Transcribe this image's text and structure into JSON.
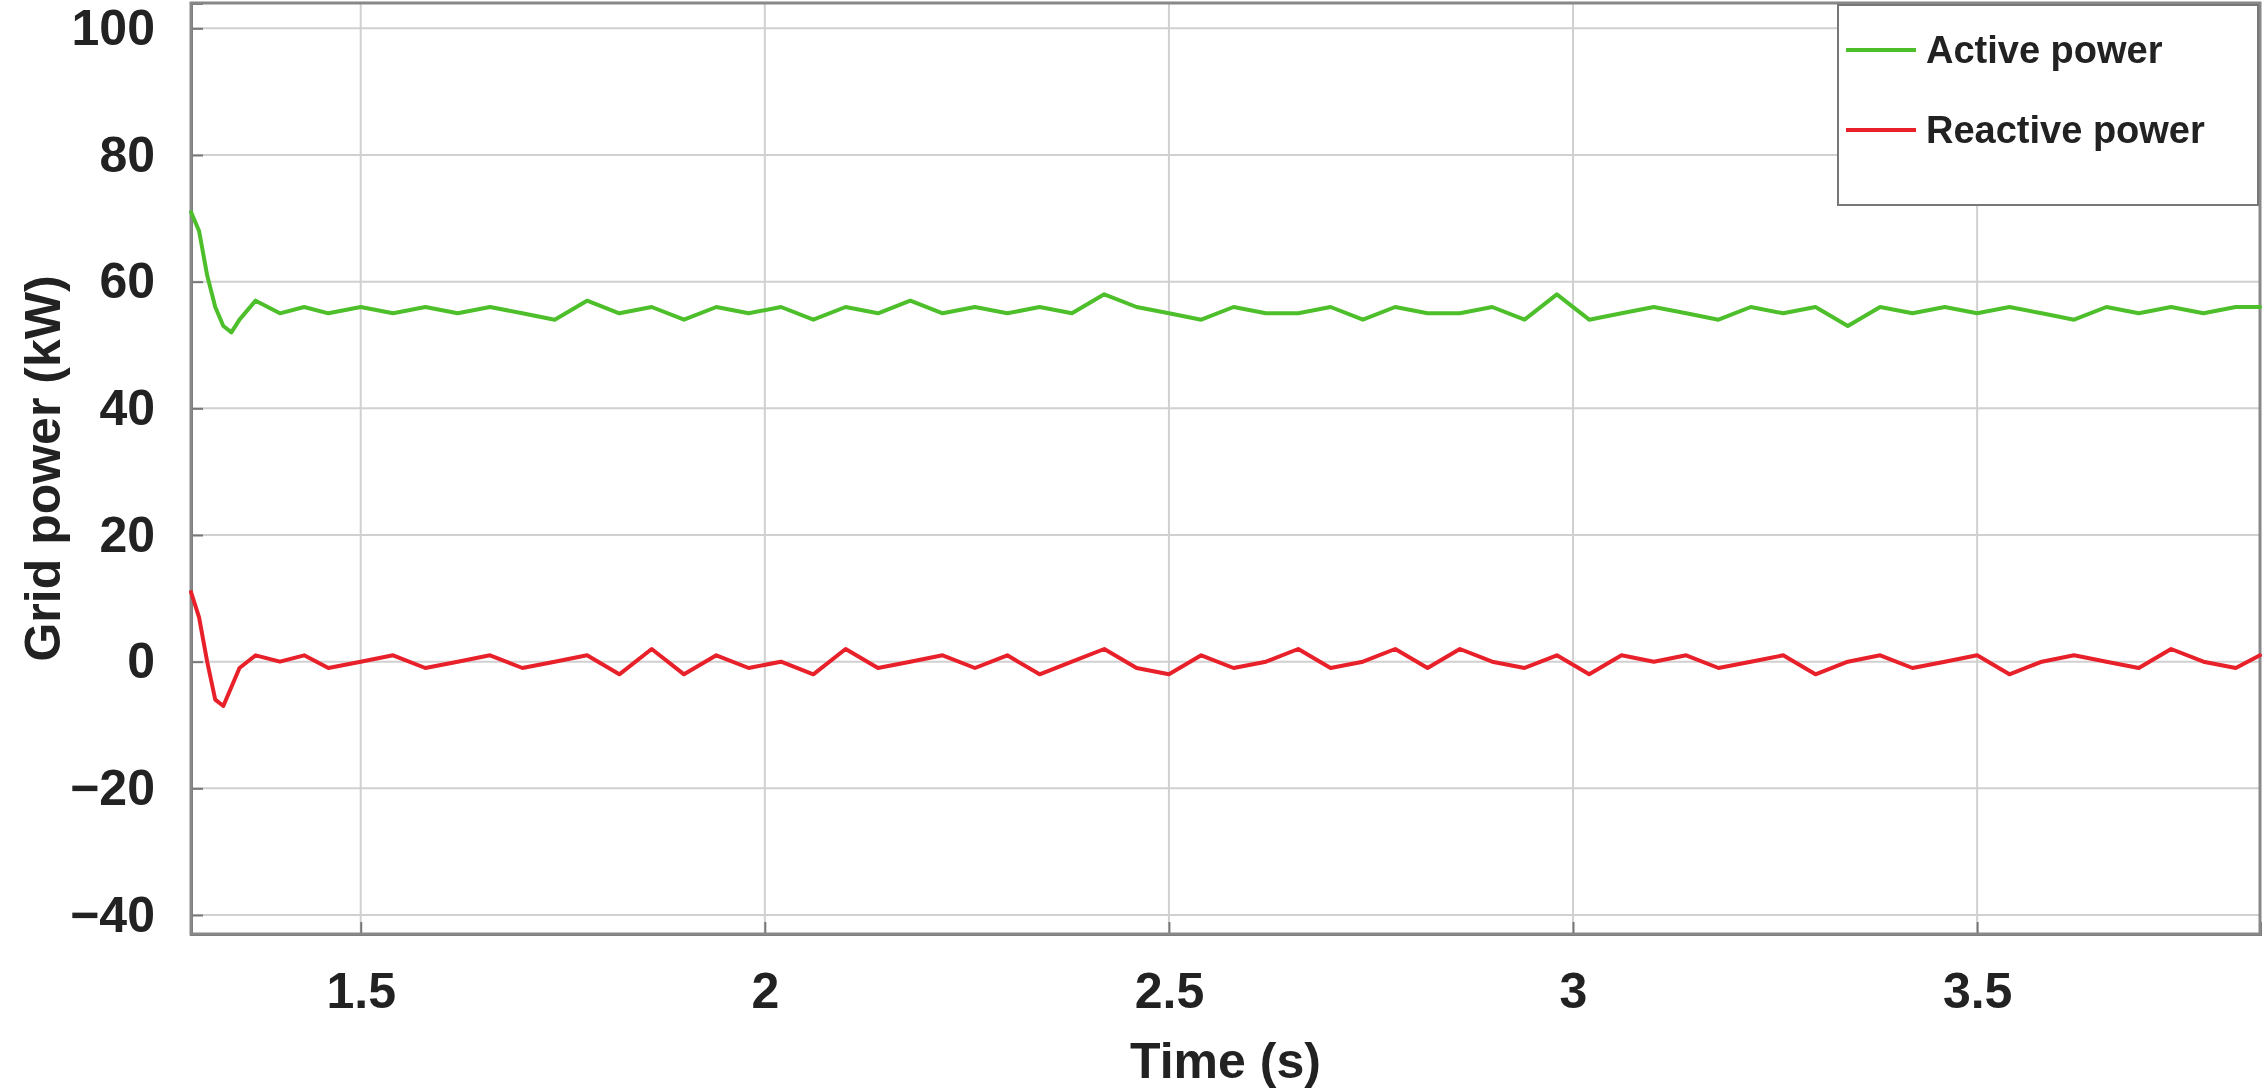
{
  "chart_data": {
    "type": "line",
    "xlabel": "Time (s)",
    "ylabel": "Grid power (kW)",
    "x": [
      1.29,
      1.3,
      1.31,
      1.32,
      1.33,
      1.34,
      1.35,
      1.37,
      1.4,
      1.43,
      1.46,
      1.5,
      1.54,
      1.58,
      1.62,
      1.66,
      1.7,
      1.74,
      1.78,
      1.82,
      1.86,
      1.9,
      1.94,
      1.98,
      2.02,
      2.06,
      2.1,
      2.14,
      2.18,
      2.22,
      2.26,
      2.3,
      2.34,
      2.38,
      2.42,
      2.46,
      2.5,
      2.54,
      2.58,
      2.62,
      2.66,
      2.7,
      2.74,
      2.78,
      2.82,
      2.86,
      2.9,
      2.94,
      2.98,
      3.02,
      3.06,
      3.1,
      3.14,
      3.18,
      3.22,
      3.26,
      3.3,
      3.34,
      3.38,
      3.42,
      3.46,
      3.5,
      3.54,
      3.58,
      3.62,
      3.66,
      3.7,
      3.74,
      3.78,
      3.82,
      3.85
    ],
    "series": [
      {
        "name": "Active power",
        "color": "#4dbf2a",
        "values": [
          71,
          68,
          61,
          56,
          53,
          52,
          54,
          57,
          55,
          56,
          55,
          56,
          55,
          56,
          55,
          56,
          55,
          54,
          57,
          55,
          56,
          54,
          56,
          55,
          56,
          54,
          56,
          55,
          57,
          55,
          56,
          55,
          56,
          55,
          58,
          56,
          55,
          54,
          56,
          55,
          55,
          56,
          54,
          56,
          55,
          55,
          56,
          54,
          58,
          54,
          55,
          56,
          55,
          54,
          56,
          55,
          56,
          53,
          56,
          55,
          56,
          55,
          56,
          55,
          54,
          56,
          55,
          56,
          55,
          56,
          56
        ]
      },
      {
        "name": "Reactive power",
        "color": "#e8202a",
        "values": [
          11,
          7,
          0,
          -6,
          -7,
          -4,
          -1,
          1,
          0,
          1,
          -1,
          0,
          1,
          -1,
          0,
          1,
          -1,
          0,
          1,
          -2,
          2,
          -2,
          1,
          -1,
          0,
          -2,
          2,
          -1,
          0,
          1,
          -1,
          1,
          -2,
          0,
          2,
          -1,
          -2,
          1,
          -1,
          0,
          2,
          -1,
          0,
          2,
          -1,
          2,
          0,
          -1,
          1,
          -2,
          1,
          0,
          1,
          -1,
          0,
          1,
          -2,
          0,
          1,
          -1,
          0,
          1,
          -2,
          0,
          1,
          0,
          -1,
          2,
          0,
          -1,
          1
        ]
      }
    ],
    "xlim": [
      1.29,
      3.85
    ],
    "xticks": [
      1.5,
      2,
      2.5,
      3,
      3.5
    ],
    "ylim": [
      -43,
      104
    ],
    "yticks": [
      {
        "value": -40,
        "label": "−40"
      },
      {
        "value": -20,
        "label": "−20"
      },
      0,
      20,
      40,
      60,
      80,
      100
    ],
    "grid": true,
    "legend": "top right",
    "line_style": "solid",
    "marker": "none"
  }
}
